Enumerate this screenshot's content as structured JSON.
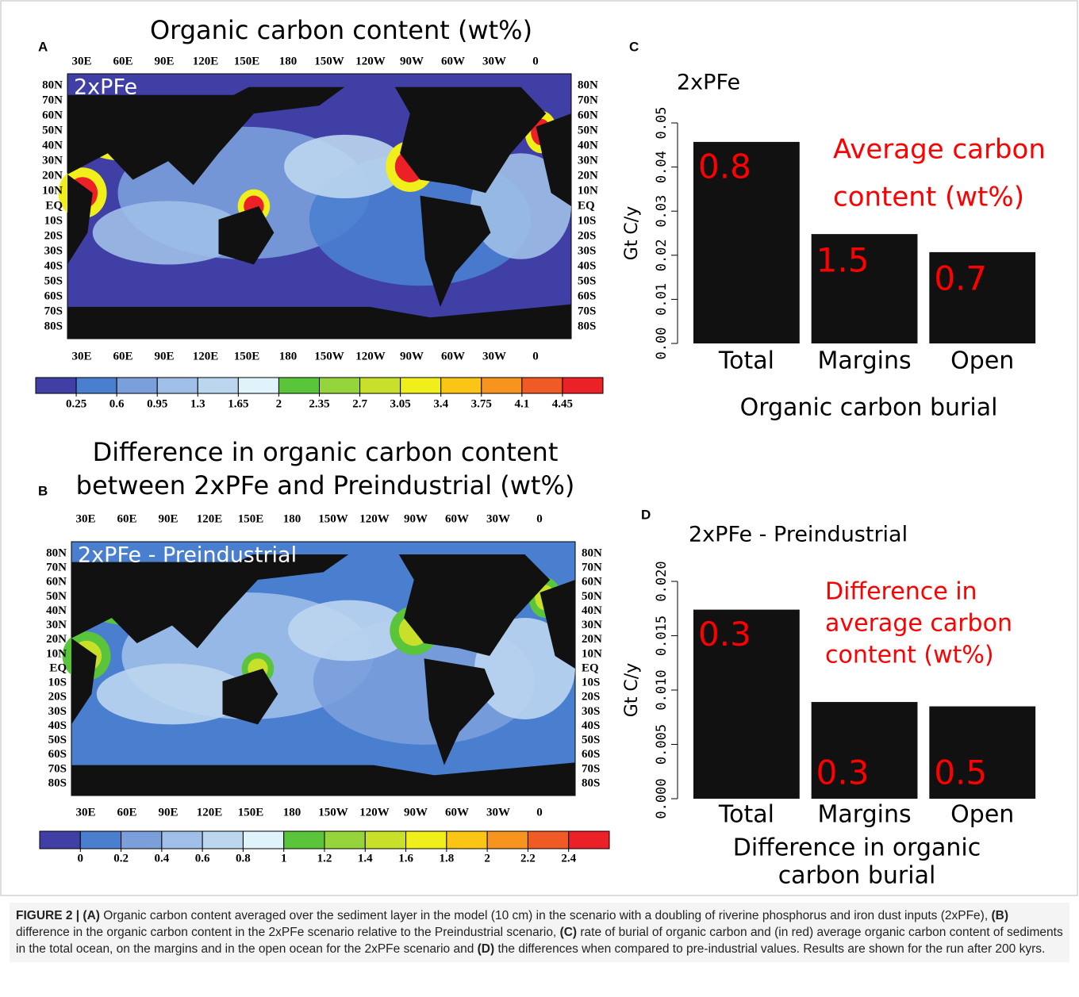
{
  "panels": [
    {
      "letter": "A",
      "title": [
        "Organic carbon content (wt%)"
      ],
      "map_label": "2xPFe",
      "colorbar": [
        0.25,
        0.6,
        0.95,
        1.3,
        1.65,
        2,
        2.35,
        2.7,
        3.05,
        3.4,
        3.75,
        4.1,
        4.45
      ]
    },
    {
      "letter": "B",
      "title": [
        "Difference in organic carbon content",
        "between 2xPFe and Preindustrial (wt%)"
      ],
      "map_label": "2xPFe - Preindustrial",
      "colorbar": [
        0,
        0.2,
        0.4,
        0.6,
        0.8,
        1,
        1.2,
        1.4,
        1.6,
        1.8,
        2,
        2.2,
        2.4
      ]
    }
  ],
  "map_axes": {
    "lon": [
      "30E",
      "60E",
      "90E",
      "120E",
      "150E",
      "180",
      "150W",
      "120W",
      "90W",
      "60W",
      "30W",
      "0"
    ],
    "lat": [
      "80N",
      "70N",
      "60N",
      "50N",
      "40N",
      "30N",
      "20N",
      "10N",
      "EQ",
      "10S",
      "20S",
      "30S",
      "40S",
      "50S",
      "60S",
      "70S",
      "80S"
    ],
    "colors": [
      "#3f3fa6",
      "#4a7fd0",
      "#7a9fdb",
      "#9fbfe8",
      "#bcd6f0",
      "#dff3fb",
      "#5ac43a",
      "#96d43c",
      "#c8e02a",
      "#f0ef1c",
      "#fbc515",
      "#f7941d",
      "#f05a24",
      "#ec2027"
    ]
  },
  "chart_data": [
    {
      "type": "bar",
      "letter": "C",
      "subtitle": "2xPFe",
      "ylabel": "Gt C/y",
      "xlabel": [
        "Organic carbon burial"
      ],
      "annotation": [
        "Average carbon",
        "content (wt%)"
      ],
      "categories": [
        "Total",
        "Margins",
        "Open"
      ],
      "values": [
        0.0457,
        0.0248,
        0.0207
      ],
      "bar_annotations": [
        "0.8",
        "1.5",
        "0.7"
      ],
      "color": "#111111",
      "annotation_color": "#ff0000",
      "ylim": [
        0,
        0.05
      ],
      "yticks": [
        {
          "value": 0,
          "label": "0.00"
        },
        {
          "value": 0.01,
          "label": "0.01"
        },
        {
          "value": 0.02,
          "label": "0.02"
        },
        {
          "value": 0.03,
          "label": "0.03"
        },
        {
          "value": 0.04,
          "label": "0.04"
        },
        {
          "value": 0.05,
          "label": "0.05"
        }
      ]
    },
    {
      "type": "bar",
      "letter": "D",
      "subtitle": "2xPFe - Preindustrial",
      "ylabel": "Gt C/y",
      "xlabel": [
        "Difference in organic",
        "carbon burial"
      ],
      "annotation": [
        "Difference in",
        "average carbon",
        "content (wt%)"
      ],
      "categories": [
        "Total",
        "Margins",
        "Open"
      ],
      "values": [
        0.0174,
        0.0089,
        0.0085
      ],
      "bar_annotations": [
        "0.3",
        "0.3",
        "0.5"
      ],
      "color": "#111111",
      "annotation_color": "#ff0000",
      "ylim": [
        0,
        0.02
      ],
      "yticks": [
        {
          "value": 0,
          "label": "0.000"
        },
        {
          "value": 0.005,
          "label": "0.005"
        },
        {
          "value": 0.01,
          "label": "0.010"
        },
        {
          "value": 0.015,
          "label": "0.015"
        },
        {
          "value": 0.02,
          "label": "0.020"
        }
      ]
    }
  ],
  "caption": [
    "FIGURE 2 | (A)",
    " Organic carbon content averaged over the sediment layer in the model (10 cm) in the scenario with a doubling of riverine phosphorus and iron dust inputs (2xPFe), ",
    "(B)",
    " difference in the organic carbon content in the 2xPFe scenario relative to the Preindustrial scenario, ",
    "(C)",
    " rate of burial of organic carbon and (in red) average organic carbon content of sediments in the total ocean, on the margins and in the open ocean for the 2xPFe scenario and ",
    "(D)",
    " the differences when compared to pre-industrial values. Results are shown for the run after 200 kyrs."
  ]
}
